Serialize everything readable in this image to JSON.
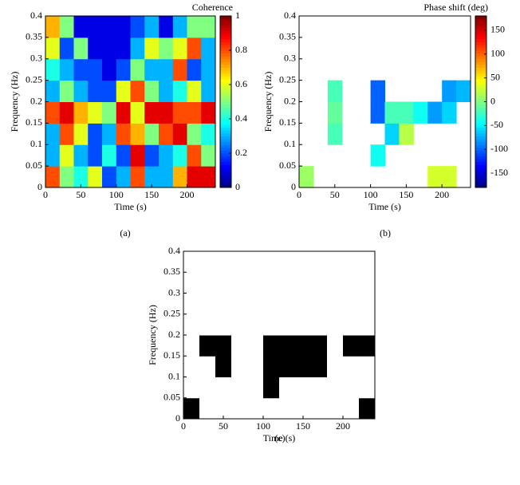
{
  "chart_data": [
    {
      "type": "heatmap",
      "panel_label": "(a)",
      "xlabel": "Time (s)",
      "ylabel": "Frequency (Hz)",
      "colorbar_label": "Coherence",
      "colormap": "jet",
      "xlim": [
        0,
        240
      ],
      "xticks": [
        0,
        50,
        100,
        150,
        200
      ],
      "ylim": [
        0,
        0.4
      ],
      "yticks": [
        0,
        0.05,
        0.1,
        0.15,
        0.2,
        0.25,
        0.3,
        0.35,
        0.4
      ],
      "clim": [
        0,
        1
      ],
      "cticks": [
        0,
        0.2,
        0.4,
        0.6,
        0.8,
        1
      ],
      "z": [
        [
          0.8,
          0.5,
          0.4,
          0.6,
          0.2,
          0.3,
          0.8,
          0.3,
          0.3,
          0.7,
          0.9,
          0.9
        ],
        [
          0.3,
          0.6,
          0.3,
          0.2,
          0.4,
          0.2,
          0.9,
          0.2,
          0.3,
          0.4,
          0.8,
          0.5
        ],
        [
          0.3,
          0.8,
          0.6,
          0.2,
          0.3,
          0.8,
          0.7,
          0.5,
          0.8,
          0.9,
          0.5,
          0.4
        ],
        [
          0.8,
          0.9,
          0.7,
          0.6,
          0.5,
          0.9,
          0.6,
          0.9,
          0.9,
          0.8,
          0.8,
          0.9
        ],
        [
          0.3,
          0.5,
          0.3,
          0.2,
          0.2,
          0.6,
          0.8,
          0.5,
          0.3,
          0.4,
          0.6,
          0.3
        ],
        [
          0.4,
          0.3,
          0.2,
          0.2,
          0.1,
          0.2,
          0.5,
          0.3,
          0.3,
          0.8,
          0.2,
          0.3
        ],
        [
          0.6,
          0.2,
          0.5,
          0.1,
          0.1,
          0.1,
          0.3,
          0.6,
          0.5,
          0.6,
          0.8,
          0.3
        ],
        [
          0.7,
          0.5,
          0.1,
          0.1,
          0.1,
          0.1,
          0.2,
          0.3,
          0.1,
          0.3,
          0.5,
          0.5
        ]
      ]
    },
    {
      "type": "heatmap",
      "panel_label": "(b)",
      "xlabel": "Time (s)",
      "ylabel": "Frequency (Hz)",
      "colorbar_label": "Phase shift (deg)",
      "colormap": "jet",
      "xlim": [
        0,
        240
      ],
      "xticks": [
        0,
        50,
        100,
        150,
        200
      ],
      "ylim": [
        0,
        0.4
      ],
      "yticks": [
        0,
        0.05,
        0.1,
        0.15,
        0.2,
        0.25,
        0.3,
        0.35,
        0.4
      ],
      "clim": [
        -180,
        180
      ],
      "cticks": [
        -150,
        -100,
        -50,
        0,
        50,
        100,
        150
      ],
      "z": [
        [
          10,
          null,
          null,
          null,
          null,
          null,
          null,
          null,
          null,
          30,
          30,
          null
        ],
        [
          null,
          null,
          null,
          null,
          null,
          -40,
          null,
          null,
          null,
          null,
          null,
          null
        ],
        [
          null,
          null,
          -20,
          null,
          null,
          null,
          -60,
          20,
          null,
          null,
          null,
          null
        ],
        [
          null,
          null,
          -10,
          null,
          null,
          -100,
          -20,
          -20,
          -40,
          -80,
          -60,
          null
        ],
        [
          null,
          null,
          -20,
          null,
          null,
          -100,
          null,
          null,
          null,
          null,
          -80,
          -70
        ],
        [
          null,
          null,
          null,
          null,
          null,
          null,
          null,
          null,
          null,
          null,
          null,
          null
        ],
        [
          null,
          null,
          null,
          null,
          null,
          null,
          null,
          null,
          null,
          null,
          null,
          null
        ],
        [
          null,
          null,
          null,
          null,
          null,
          null,
          null,
          null,
          null,
          null,
          null,
          null
        ]
      ]
    },
    {
      "type": "heatmap",
      "panel_label": "(c)",
      "xlabel": "Time (s)",
      "ylabel": "Frequency (Hz)",
      "colormap": "binary",
      "xlim": [
        0,
        240
      ],
      "xticks": [
        0,
        50,
        100,
        150,
        200
      ],
      "ylim": [
        0,
        0.4
      ],
      "yticks": [
        0,
        0.05,
        0.1,
        0.15,
        0.2,
        0.25,
        0.3,
        0.35,
        0.4
      ],
      "z": [
        [
          1,
          0,
          0,
          0,
          0,
          0,
          0,
          0,
          0,
          0,
          0,
          1
        ],
        [
          0,
          0,
          0,
          0,
          0,
          1,
          0,
          0,
          0,
          0,
          0,
          0
        ],
        [
          0,
          0,
          1,
          0,
          0,
          1,
          1,
          1,
          1,
          0,
          0,
          0
        ],
        [
          0,
          1,
          1,
          0,
          0,
          1,
          1,
          1,
          1,
          0,
          1,
          1
        ],
        [
          0,
          0,
          0,
          0,
          0,
          0,
          0,
          0,
          0,
          0,
          0,
          0
        ],
        [
          0,
          0,
          0,
          0,
          0,
          0,
          0,
          0,
          0,
          0,
          0,
          0
        ],
        [
          0,
          0,
          0,
          0,
          0,
          0,
          0,
          0,
          0,
          0,
          0,
          0
        ],
        [
          0,
          0,
          0,
          0,
          0,
          0,
          0,
          0,
          0,
          0,
          0,
          0
        ]
      ]
    }
  ]
}
